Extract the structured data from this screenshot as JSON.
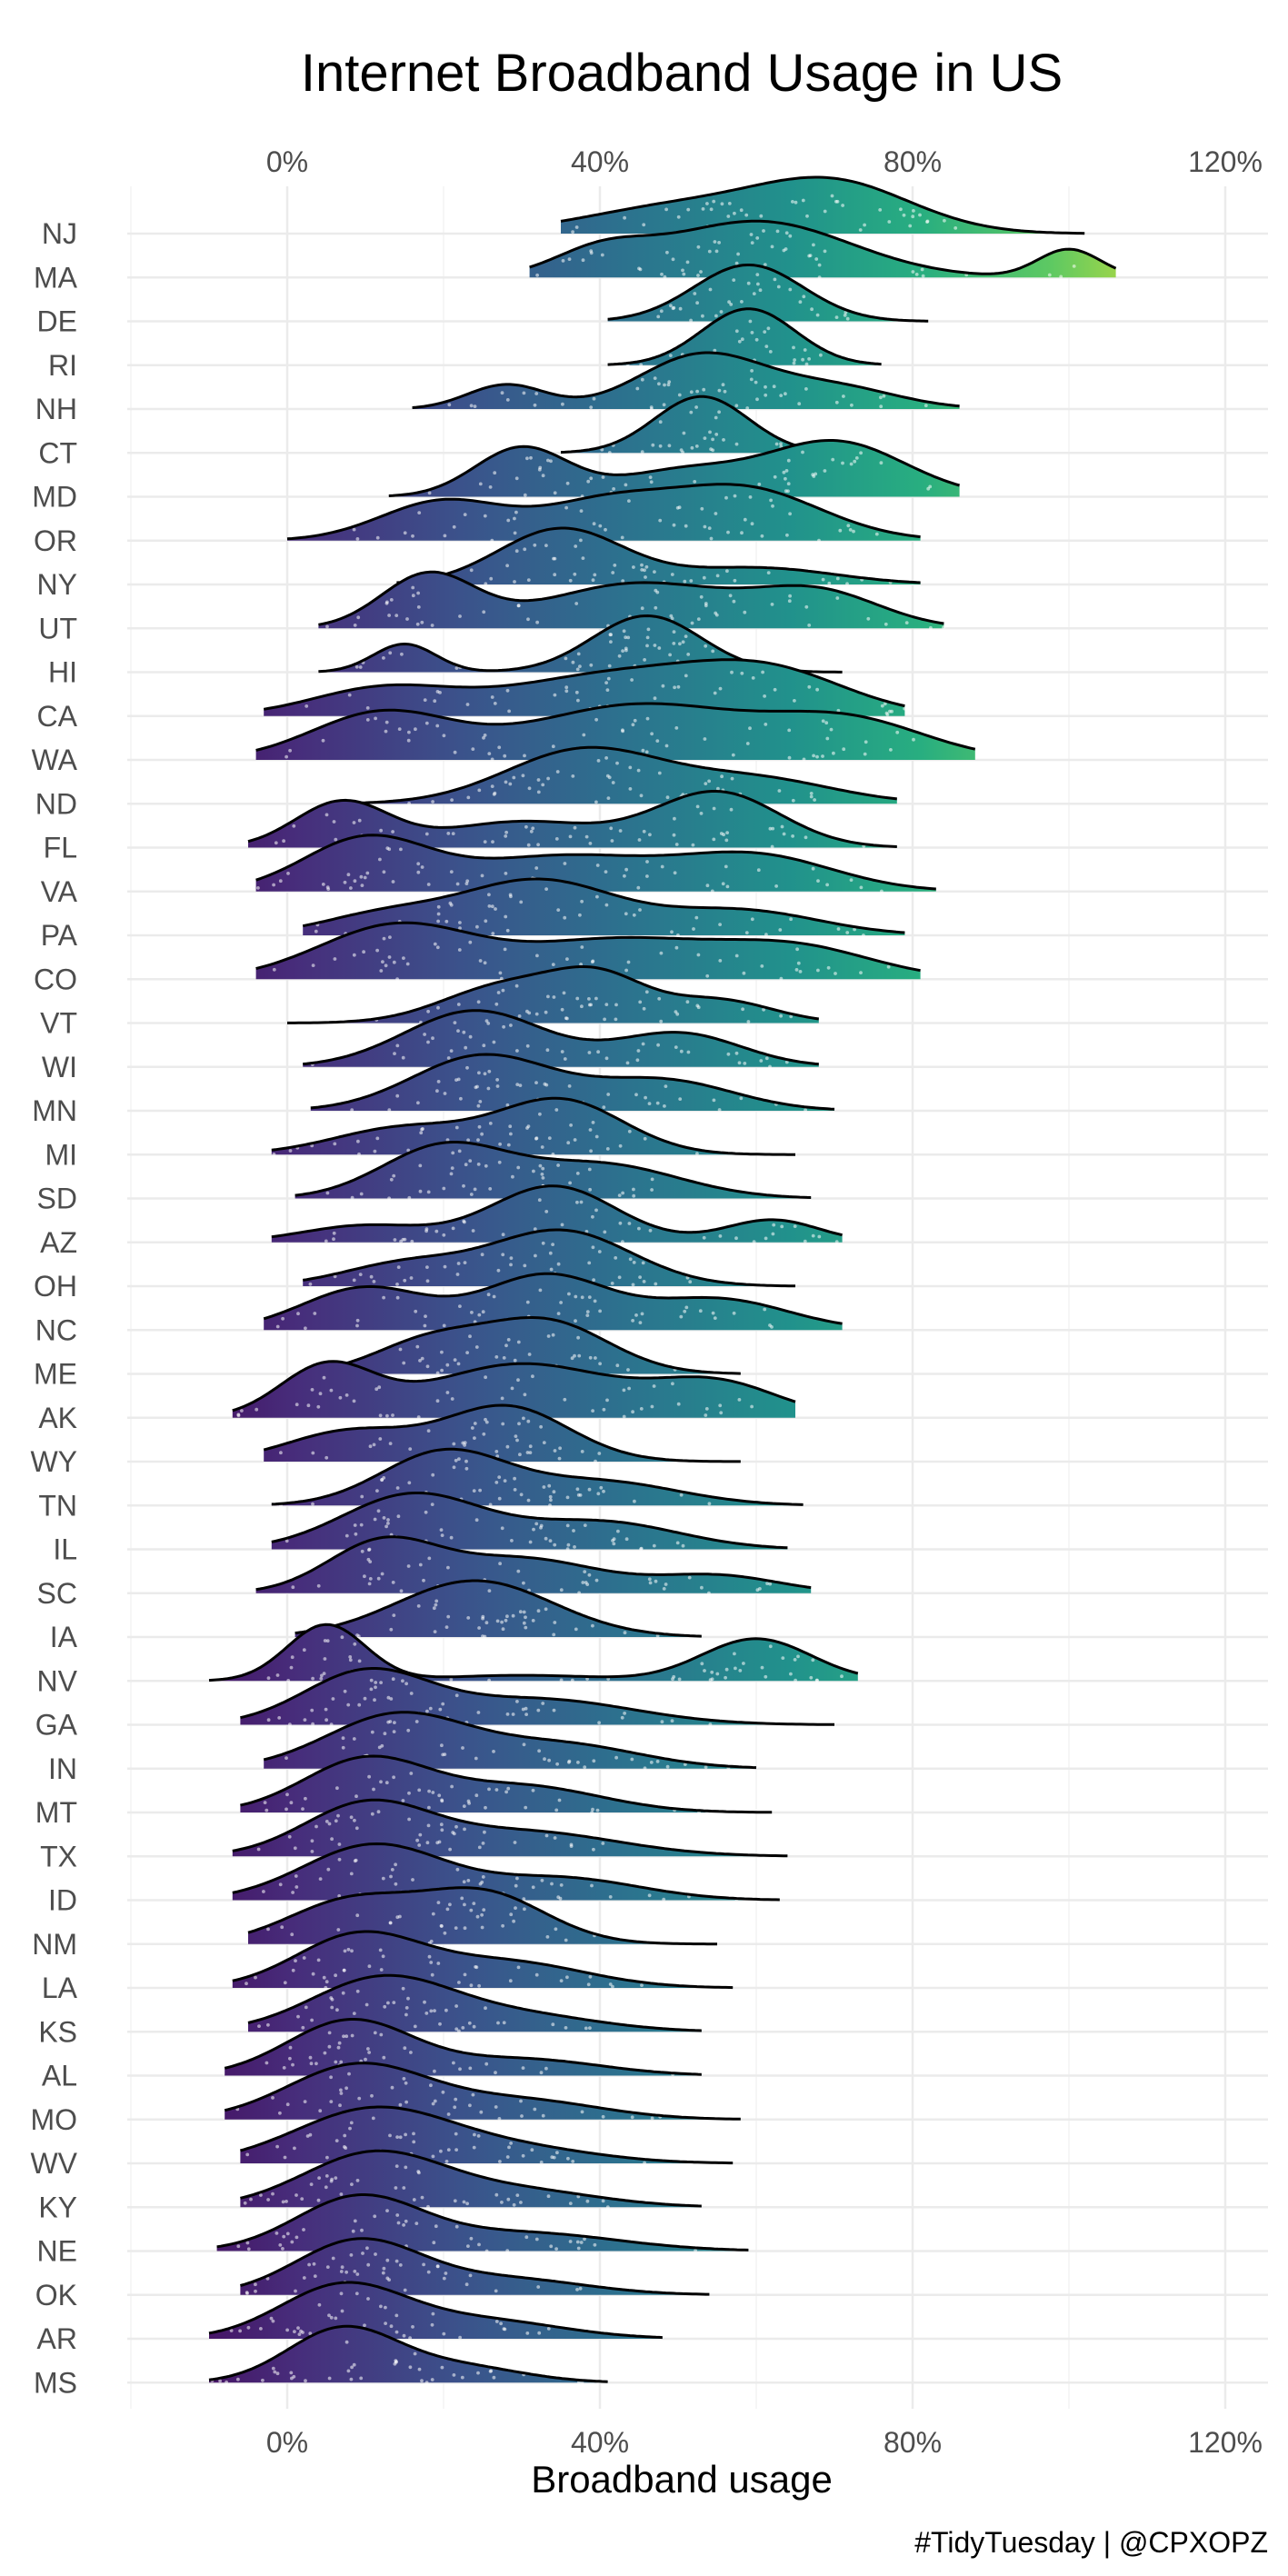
{
  "chart_data": {
    "type": "ridgeline",
    "title": "Internet Broadband Usage in US",
    "xlabel": "Broadband usage",
    "caption": "#TidyTuesday | @CPXOPZ",
    "x_ticks": [
      0,
      40,
      80,
      120
    ],
    "x_tick_labels": [
      "0%",
      "40%",
      "80%",
      "120%"
    ],
    "xlim": [
      -20,
      120
    ],
    "grid": true,
    "gradient": {
      "scale": "viridis",
      "low_color": "#3b1f6b",
      "mid_color": "#22908c",
      "high_color": "#c9e23a"
    },
    "series": [
      {
        "name": "NJ",
        "range": [
          35,
          102
        ],
        "peaks": [
          [
            70,
            10,
            1.0
          ],
          [
            50,
            12,
            0.55
          ]
        ]
      },
      {
        "name": "MA",
        "range": [
          31,
          106
        ],
        "peaks": [
          [
            60,
            12,
            1.0
          ],
          [
            40,
            6,
            0.4
          ],
          [
            100,
            4,
            0.5
          ]
        ]
      },
      {
        "name": "DE",
        "range": [
          41,
          82
        ],
        "peaks": [
          [
            59,
            7,
            1.0
          ]
        ]
      },
      {
        "name": "RI",
        "range": [
          41,
          76
        ],
        "peaks": [
          [
            59,
            6,
            1.0
          ]
        ]
      },
      {
        "name": "NH",
        "range": [
          16,
          86
        ],
        "peaks": [
          [
            53,
            8,
            1.0
          ],
          [
            28,
            5,
            0.45
          ],
          [
            70,
            8,
            0.4
          ]
        ]
      },
      {
        "name": "CT",
        "range": [
          35,
          71
        ],
        "peaks": [
          [
            53,
            6,
            1.0
          ]
        ]
      },
      {
        "name": "MD",
        "range": [
          13,
          86
        ],
        "peaks": [
          [
            30,
            6,
            0.8
          ],
          [
            70,
            9,
            0.9
          ],
          [
            50,
            8,
            0.4
          ]
        ]
      },
      {
        "name": "OR",
        "range": [
          0,
          81
        ],
        "peaks": [
          [
            20,
            8,
            0.6
          ],
          [
            58,
            10,
            0.8
          ],
          [
            40,
            8,
            0.5
          ]
        ]
      },
      {
        "name": "NY",
        "range": [
          14,
          81
        ],
        "peaks": [
          [
            35,
            8,
            1.0
          ],
          [
            60,
            10,
            0.3
          ]
        ]
      },
      {
        "name": "UT",
        "range": [
          4,
          84
        ],
        "peaks": [
          [
            18,
            6,
            0.7
          ],
          [
            45,
            12,
            0.6
          ],
          [
            68,
            8,
            0.45
          ]
        ]
      },
      {
        "name": "HI",
        "range": [
          4,
          71
        ],
        "peaks": [
          [
            15,
            4,
            0.5
          ],
          [
            46,
            7,
            1.0
          ]
        ]
      },
      {
        "name": "CA",
        "range": [
          -3,
          79
        ],
        "peaks": [
          [
            12,
            9,
            0.35
          ],
          [
            42,
            14,
            0.55
          ],
          [
            62,
            10,
            0.5
          ]
        ]
      },
      {
        "name": "WA",
        "range": [
          -4,
          88
        ],
        "peaks": [
          [
            12,
            9,
            0.5
          ],
          [
            45,
            14,
            0.6
          ],
          [
            72,
            10,
            0.4
          ]
        ]
      },
      {
        "name": "ND",
        "range": [
          8,
          78
        ],
        "peaks": [
          [
            38,
            10,
            1.0
          ],
          [
            60,
            10,
            0.45
          ]
        ]
      },
      {
        "name": "FL",
        "range": [
          -5,
          78
        ],
        "peaks": [
          [
            7,
            6,
            0.7
          ],
          [
            55,
            8,
            0.85
          ],
          [
            30,
            10,
            0.4
          ]
        ]
      },
      {
        "name": "VA",
        "range": [
          -4,
          83
        ],
        "peaks": [
          [
            10,
            8,
            0.6
          ],
          [
            35,
            12,
            0.4
          ],
          [
            60,
            10,
            0.4
          ]
        ]
      },
      {
        "name": "PA",
        "range": [
          2,
          79
        ],
        "peaks": [
          [
            32,
            10,
            1.0
          ],
          [
            12,
            8,
            0.35
          ],
          [
            58,
            10,
            0.45
          ]
        ]
      },
      {
        "name": "CO",
        "range": [
          -4,
          81
        ],
        "peaks": [
          [
            14,
            10,
            0.7
          ],
          [
            42,
            12,
            0.5
          ],
          [
            65,
            10,
            0.4
          ]
        ]
      },
      {
        "name": "VT",
        "range": [
          0,
          68
        ],
        "peaks": [
          [
            28,
            8,
            0.65
          ],
          [
            40,
            6,
            0.7
          ],
          [
            55,
            7,
            0.4
          ]
        ]
      },
      {
        "name": "WI",
        "range": [
          2,
          68
        ],
        "peaks": [
          [
            24,
            9,
            1.0
          ],
          [
            50,
            8,
            0.6
          ]
        ]
      },
      {
        "name": "MN",
        "range": [
          3,
          70
        ],
        "peaks": [
          [
            25,
            9,
            1.0
          ],
          [
            48,
            9,
            0.55
          ]
        ]
      },
      {
        "name": "MI",
        "range": [
          -2,
          65
        ],
        "peaks": [
          [
            35,
            8,
            1.0
          ],
          [
            15,
            9,
            0.5
          ]
        ]
      },
      {
        "name": "SD",
        "range": [
          1,
          67
        ],
        "peaks": [
          [
            20,
            8,
            0.9
          ],
          [
            40,
            10,
            0.6
          ]
        ]
      },
      {
        "name": "AZ",
        "range": [
          -2,
          71
        ],
        "peaks": [
          [
            34,
            8,
            1.0
          ],
          [
            10,
            8,
            0.3
          ],
          [
            62,
            6,
            0.4
          ]
        ]
      },
      {
        "name": "OH",
        "range": [
          2,
          65
        ],
        "peaks": [
          [
            35,
            9,
            1.0
          ],
          [
            15,
            8,
            0.4
          ]
        ]
      },
      {
        "name": "NC",
        "range": [
          -3,
          71
        ],
        "peaks": [
          [
            10,
            8,
            0.55
          ],
          [
            33,
            8,
            0.7
          ],
          [
            55,
            9,
            0.4
          ]
        ]
      },
      {
        "name": "ME",
        "range": [
          4,
          58
        ],
        "peaks": [
          [
            33,
            8,
            1.0
          ],
          [
            18,
            7,
            0.6
          ]
        ]
      },
      {
        "name": "AK",
        "range": [
          -7,
          65
        ],
        "peaks": [
          [
            5,
            6,
            0.6
          ],
          [
            30,
            12,
            0.65
          ],
          [
            55,
            8,
            0.4
          ]
        ]
      },
      {
        "name": "WY",
        "range": [
          -3,
          58
        ],
        "peaks": [
          [
            28,
            8,
            1.0
          ],
          [
            8,
            8,
            0.55
          ]
        ]
      },
      {
        "name": "TN",
        "range": [
          -2,
          66
        ],
        "peaks": [
          [
            20,
            8,
            1.0
          ],
          [
            40,
            10,
            0.45
          ]
        ]
      },
      {
        "name": "IL",
        "range": [
          -2,
          64
        ],
        "peaks": [
          [
            16,
            9,
            1.0
          ],
          [
            40,
            10,
            0.5
          ]
        ]
      },
      {
        "name": "SC",
        "range": [
          -4,
          67
        ],
        "peaks": [
          [
            12,
            7,
            0.85
          ],
          [
            30,
            10,
            0.6
          ],
          [
            55,
            8,
            0.3
          ]
        ]
      },
      {
        "name": "IA",
        "range": [
          1,
          53
        ],
        "peaks": [
          [
            24,
            10,
            1.0
          ]
        ]
      },
      {
        "name": "NV",
        "range": [
          -10,
          73
        ],
        "peaks": [
          [
            5,
            5,
            1.0
          ],
          [
            60,
            7,
            0.75
          ],
          [
            30,
            10,
            0.1
          ]
        ]
      },
      {
        "name": "GA",
        "range": [
          -6,
          70
        ],
        "peaks": [
          [
            10,
            8,
            1.0
          ],
          [
            32,
            12,
            0.5
          ]
        ]
      },
      {
        "name": "IN",
        "range": [
          -3,
          60
        ],
        "peaks": [
          [
            14,
            9,
            1.0
          ],
          [
            35,
            10,
            0.45
          ]
        ]
      },
      {
        "name": "MT",
        "range": [
          -6,
          62
        ],
        "peaks": [
          [
            10,
            8,
            1.0
          ],
          [
            30,
            10,
            0.5
          ]
        ]
      },
      {
        "name": "TX",
        "range": [
          -7,
          64
        ],
        "peaks": [
          [
            10,
            8,
            1.0
          ],
          [
            30,
            12,
            0.5
          ]
        ]
      },
      {
        "name": "ID",
        "range": [
          -7,
          63
        ],
        "peaks": [
          [
            11,
            9,
            1.0
          ],
          [
            35,
            10,
            0.4
          ]
        ]
      },
      {
        "name": "NM",
        "range": [
          -5,
          55
        ],
        "peaks": [
          [
            8,
            8,
            0.8
          ],
          [
            25,
            8,
            0.95
          ]
        ]
      },
      {
        "name": "LA",
        "range": [
          -7,
          57
        ],
        "peaks": [
          [
            9,
            8,
            1.0
          ],
          [
            28,
            10,
            0.5
          ]
        ]
      },
      {
        "name": "KS",
        "range": [
          -5,
          53
        ],
        "peaks": [
          [
            12,
            9,
            1.0
          ],
          [
            30,
            10,
            0.3
          ]
        ]
      },
      {
        "name": "AL",
        "range": [
          -8,
          53
        ],
        "peaks": [
          [
            8,
            8,
            1.0
          ],
          [
            30,
            10,
            0.3
          ]
        ]
      },
      {
        "name": "MO",
        "range": [
          -8,
          58
        ],
        "peaks": [
          [
            9,
            9,
            1.0
          ],
          [
            30,
            10,
            0.35
          ]
        ]
      },
      {
        "name": "WV",
        "range": [
          -6,
          57
        ],
        "peaks": [
          [
            11,
            10,
            1.0
          ],
          [
            30,
            10,
            0.25
          ]
        ]
      },
      {
        "name": "KY",
        "range": [
          -6,
          53
        ],
        "peaks": [
          [
            11,
            9,
            1.0
          ],
          [
            30,
            10,
            0.3
          ]
        ]
      },
      {
        "name": "NE",
        "range": [
          -9,
          59
        ],
        "peaks": [
          [
            9,
            8,
            1.0
          ],
          [
            30,
            12,
            0.35
          ]
        ]
      },
      {
        "name": "OK",
        "range": [
          -6,
          54
        ],
        "peaks": [
          [
            9,
            8,
            1.0
          ],
          [
            28,
            10,
            0.3
          ]
        ]
      },
      {
        "name": "AR",
        "range": [
          -10,
          48
        ],
        "peaks": [
          [
            7,
            8,
            1.0
          ],
          [
            25,
            10,
            0.35
          ]
        ]
      },
      {
        "name": "MS",
        "range": [
          -10,
          41
        ],
        "peaks": [
          [
            7,
            7,
            1.0
          ],
          [
            22,
            8,
            0.3
          ]
        ]
      }
    ]
  }
}
